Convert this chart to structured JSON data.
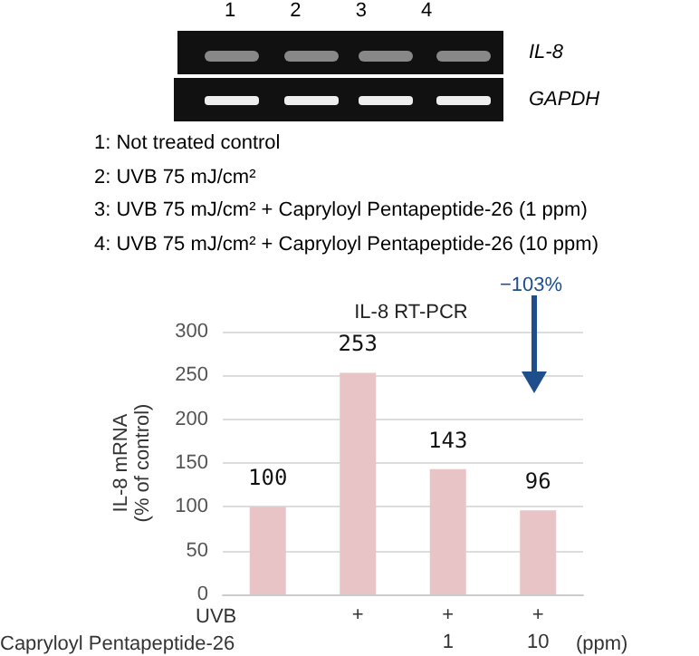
{
  "chart_data": [
    {
      "type": "other",
      "annotations": [
        "1",
        "2",
        "3",
        "4",
        "IL-8",
        "GAPDH",
        "1: Not treated control",
        "2: UVB 75 mJ/cm²",
        "3: UVB 75 mJ/cm²  + Capryloyl Pentapeptide-26 (1 ppm)",
        "4: UVB 75 mJ/cm²  + Capryloyl Pentapeptide-26 (10 ppm)"
      ]
    },
    {
      "type": "bar",
      "title": "IL-8 RT-PCR",
      "ylabel": "IL-8 mRNA\n(% of control)",
      "categories": [
        null,
        "+",
        "+\n1",
        "+\n10"
      ],
      "values": [
        100,
        253,
        143,
        96
      ],
      "color": "#e8c4c6",
      "data_labels": true,
      "ylim": [
        0,
        300
      ],
      "yticks": [
        0,
        50,
        100,
        150,
        200,
        250,
        300
      ],
      "grid": "y",
      "annotations": [
        "UVB",
        "Capryloyl Pentapeptide-26",
        "(ppm)",
        "−103%"
      ]
    }
  ]
}
